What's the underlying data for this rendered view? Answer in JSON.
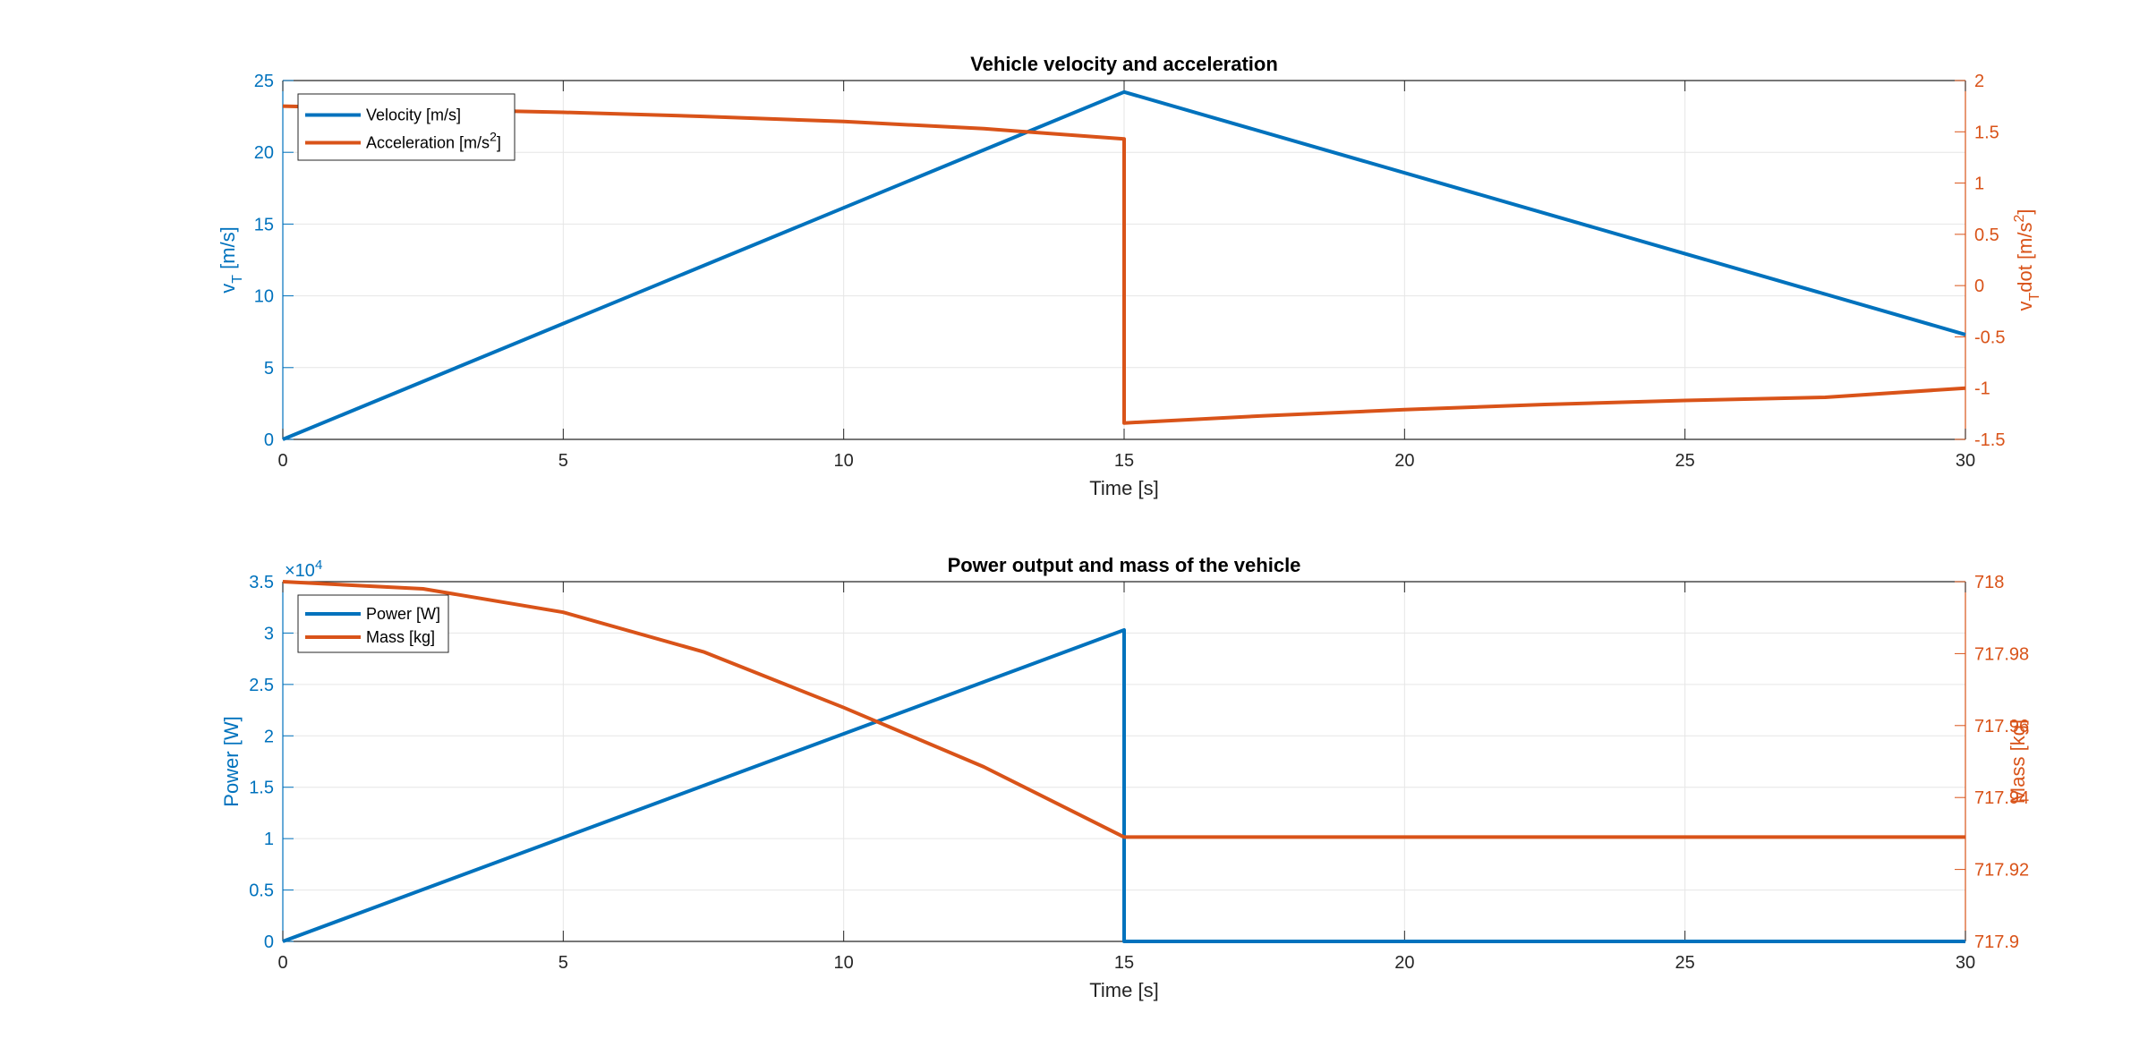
{
  "colors": {
    "blue": "#0072BD",
    "orange": "#D95319",
    "grid": "#e6e6e6",
    "axis": "#262626"
  },
  "chart_data": [
    {
      "type": "line",
      "title": "Vehicle velocity and acceleration",
      "xlabel": "Time [s]",
      "xlim": [
        0,
        30
      ],
      "xticks": [
        0,
        5,
        10,
        15,
        20,
        25,
        30
      ],
      "xticklabels": [
        "0",
        "5",
        "10",
        "15",
        "20",
        "25",
        "30"
      ],
      "grid": true,
      "legend_position": "top-left",
      "left_axis": {
        "label_main": "v",
        "label_sub": "T",
        "label_rest": " [m/s]",
        "ylim": [
          0,
          25
        ],
        "ticks": [
          0,
          5,
          10,
          15,
          20,
          25
        ],
        "ticklabels": [
          "0",
          "5",
          "10",
          "15",
          "20",
          "25"
        ]
      },
      "right_axis": {
        "label_main": "v",
        "label_sub": "T",
        "label_mid": "dot [m/s",
        "label_sup": "2",
        "label_end": "]",
        "ylim": [
          -1.5,
          2
        ],
        "ticks": [
          -1.5,
          -1,
          -0.5,
          0,
          0.5,
          1,
          1.5,
          2
        ],
        "ticklabels": [
          "-1.5",
          "-1",
          "-0.5",
          "0",
          "0.5",
          "1",
          "1.5",
          "2"
        ]
      },
      "series": [
        {
          "name": "Velocity [m/s]",
          "axis": "left",
          "color": "#0072BD",
          "x": [
            0,
            15,
            30
          ],
          "y": [
            0,
            24.2,
            7.3
          ]
        },
        {
          "name": "Acceleration [m/s",
          "name_sup": "2",
          "name_end": "]",
          "axis": "right",
          "color": "#D95319",
          "x": [
            0,
            2.5,
            5,
            7.5,
            10,
            12.5,
            15,
            15,
            17.5,
            20,
            22.5,
            25,
            27.5,
            30
          ],
          "y": [
            1.75,
            1.72,
            1.69,
            1.65,
            1.6,
            1.53,
            1.43,
            -1.34,
            -1.27,
            -1.21,
            -1.16,
            -1.12,
            -1.09,
            -1.0
          ]
        }
      ]
    },
    {
      "type": "line",
      "title": "Power output and mass of the vehicle",
      "xlabel": "Time [s]",
      "xlim": [
        0,
        30
      ],
      "xticks": [
        0,
        5,
        10,
        15,
        20,
        25,
        30
      ],
      "xticklabels": [
        "0",
        "5",
        "10",
        "15",
        "20",
        "25",
        "30"
      ],
      "grid": true,
      "legend_position": "top-left",
      "left_axis": {
        "label": "Power [W]",
        "exponent_base": "×10",
        "exponent_power": "4",
        "ylim": [
          0,
          3.5
        ],
        "ticks": [
          0,
          0.5,
          1,
          1.5,
          2,
          2.5,
          3,
          3.5
        ],
        "ticklabels": [
          "0",
          "0.5",
          "1",
          "1.5",
          "2",
          "2.5",
          "3",
          "3.5"
        ]
      },
      "right_axis": {
        "label": "Mass [kg]",
        "ylim": [
          717.9,
          718
        ],
        "ticks": [
          717.9,
          717.92,
          717.94,
          717.96,
          717.98,
          718
        ],
        "ticklabels": [
          "717.9",
          "717.92",
          "717.94",
          "717.96",
          "717.98",
          "718"
        ]
      },
      "series": [
        {
          "name": "Power [W]",
          "axis": "left",
          "color": "#0072BD",
          "x": [
            0,
            15,
            15,
            30
          ],
          "y": [
            0,
            3.03,
            0,
            0
          ]
        },
        {
          "name": "Mass [kg]",
          "axis": "right",
          "color": "#D95319",
          "x": [
            0,
            2.5,
            5,
            7.5,
            10,
            12.5,
            15,
            30
          ],
          "y": [
            718.0,
            717.998,
            717.9915,
            717.9805,
            717.965,
            717.9485,
            717.929,
            717.929
          ]
        }
      ]
    }
  ]
}
